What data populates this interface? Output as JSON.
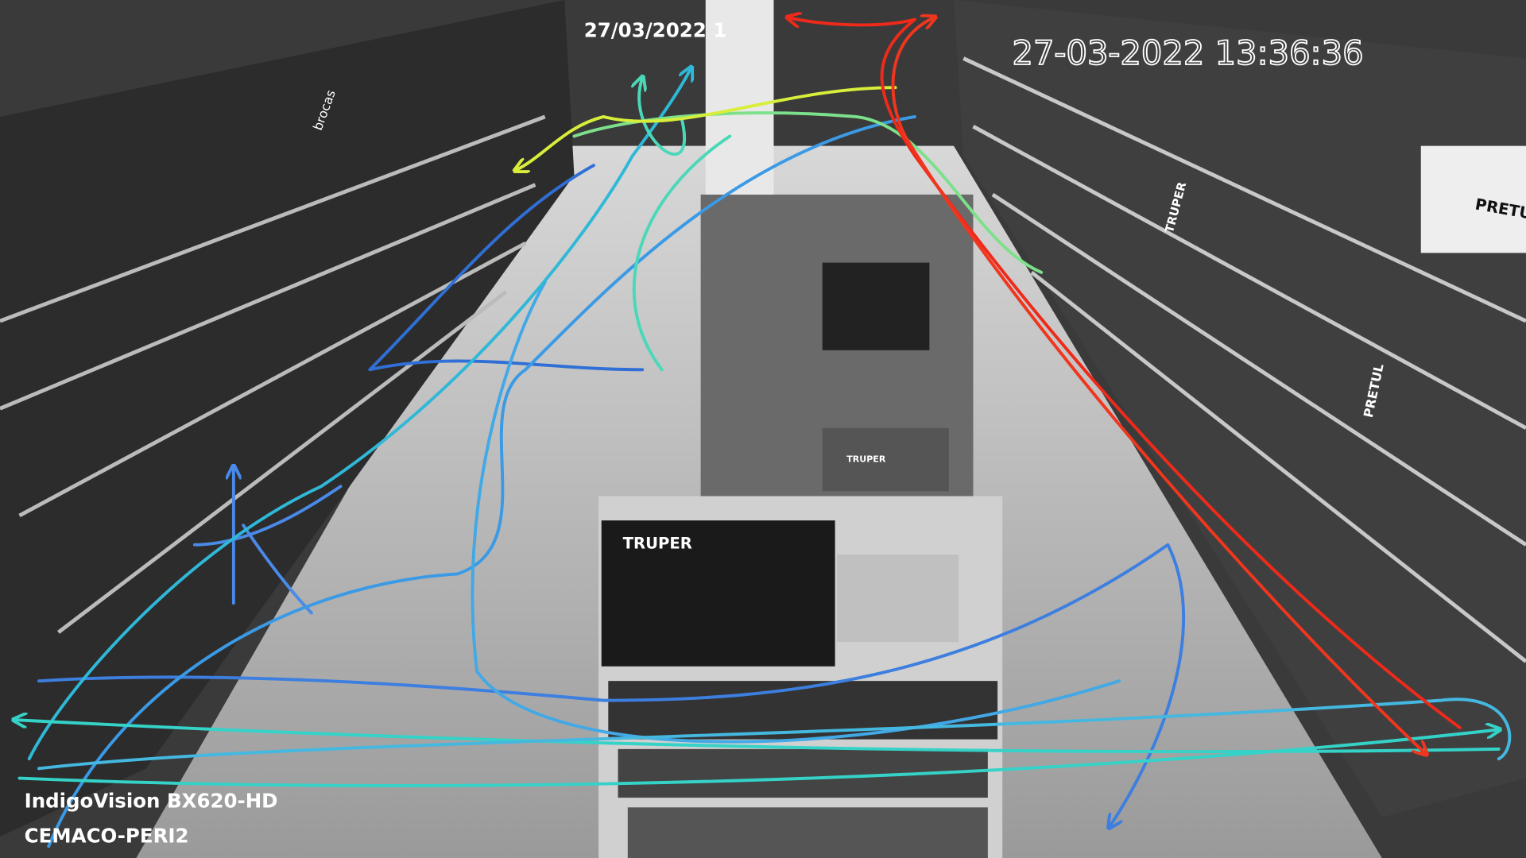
{
  "overlay": {
    "timestamp_top": "27/03/2022 1",
    "timestamp_right": "27-03-2022 13:36:36",
    "camera_model": "IndigoVision BX620-HD",
    "camera_name": "CEMACO-PERI2"
  },
  "signs": {
    "left_shelf": "brocas",
    "end_cap_box": "TRUPER",
    "gondola": "TRUPER",
    "right_shelf": "TRUPER",
    "right_banner": "PRETUL",
    "right_box": "PRETUL"
  }
}
